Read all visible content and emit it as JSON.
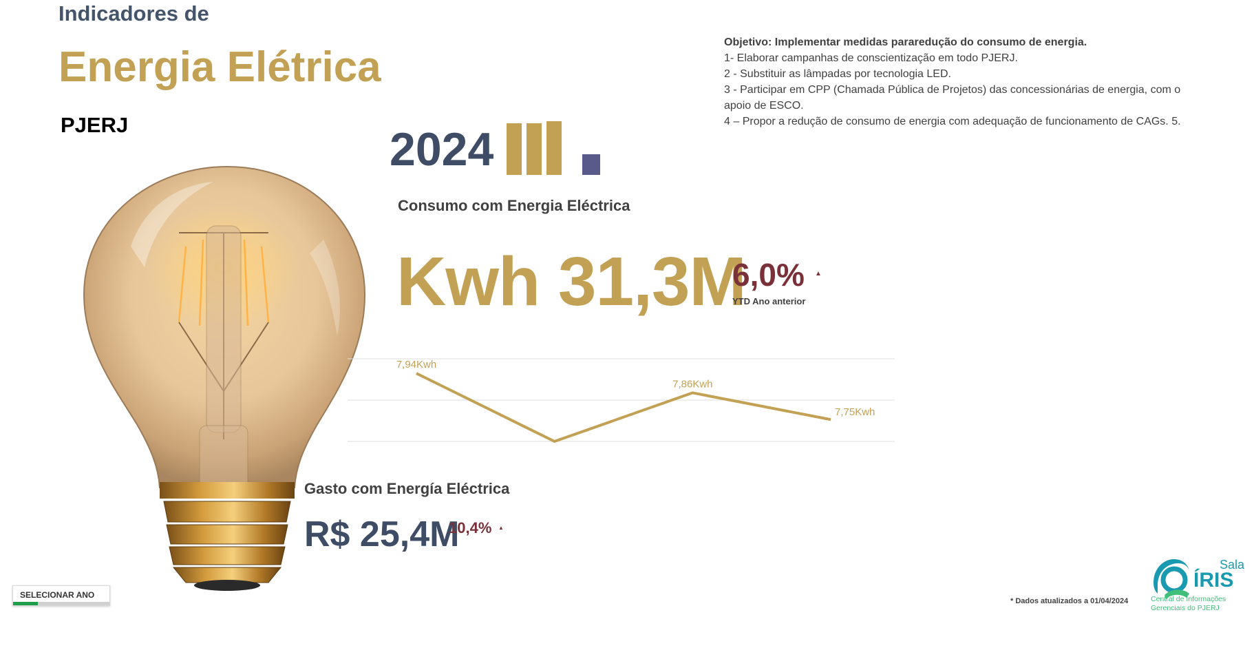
{
  "header": {
    "subtitle": "Indicadores de",
    "title": "Energia Elétrica",
    "org": "PJERJ"
  },
  "objective": {
    "heading": "Objetivo: Implementar medidas pararedução do consumo de energia.",
    "items": [
      "1- Elaborar campanhas de conscientização em todo PJERJ.",
      "2 - Substituir as lâmpadas por tecnologia LED.",
      "3 - Participar em CPP (Chamada Pública de Projetos) das concessionárias de energia, com o apoio de ESCO.",
      "4 – Propor a redução de consumo de energia com adequação de funcionamento de CAGs. 5."
    ]
  },
  "year_selector": {
    "year": "2024",
    "bars_colors": [
      "#c2a154",
      "#c2a154",
      "#c2a154",
      "#5a5a8a"
    ],
    "selected_index": 3
  },
  "consumo": {
    "label": "Consumo com Energia Eléctrica",
    "value": "Kwh 31,3M",
    "pct": "6,0%",
    "arrow": "▲",
    "ytd": "YTD Ano anterior"
  },
  "chart_data": {
    "type": "line",
    "x": [
      "1",
      "2",
      "3",
      "4"
    ],
    "series": [
      {
        "values": [
          7.94,
          7.66,
          7.86,
          7.75
        ],
        "color": "#c2a154"
      }
    ],
    "data_labels": [
      "7,94Kwh",
      "",
      "7,86Kwh",
      "7,75Kwh"
    ],
    "ylim": [
      7.66,
      8.0
    ],
    "grid": true
  },
  "gasto": {
    "label": "Gasto com Energía Eléctrica",
    "value": "R$ 25,4M",
    "pct": "10,4%",
    "arrow": "▲"
  },
  "controls": {
    "select_year_label": "SELECIONAR ANO"
  },
  "footnote": "* Dados atualizados a 01/04/2024",
  "logo": {
    "sala": "Sala",
    "iris": "ÍRIS",
    "line1": "Central de Informações",
    "line2": "Gerenciais do PJERJ"
  },
  "colors": {
    "gold": "#c2a154",
    "navy": "#3e4c66",
    "maroon": "#7a3038",
    "teal": "#1a9ab0"
  }
}
